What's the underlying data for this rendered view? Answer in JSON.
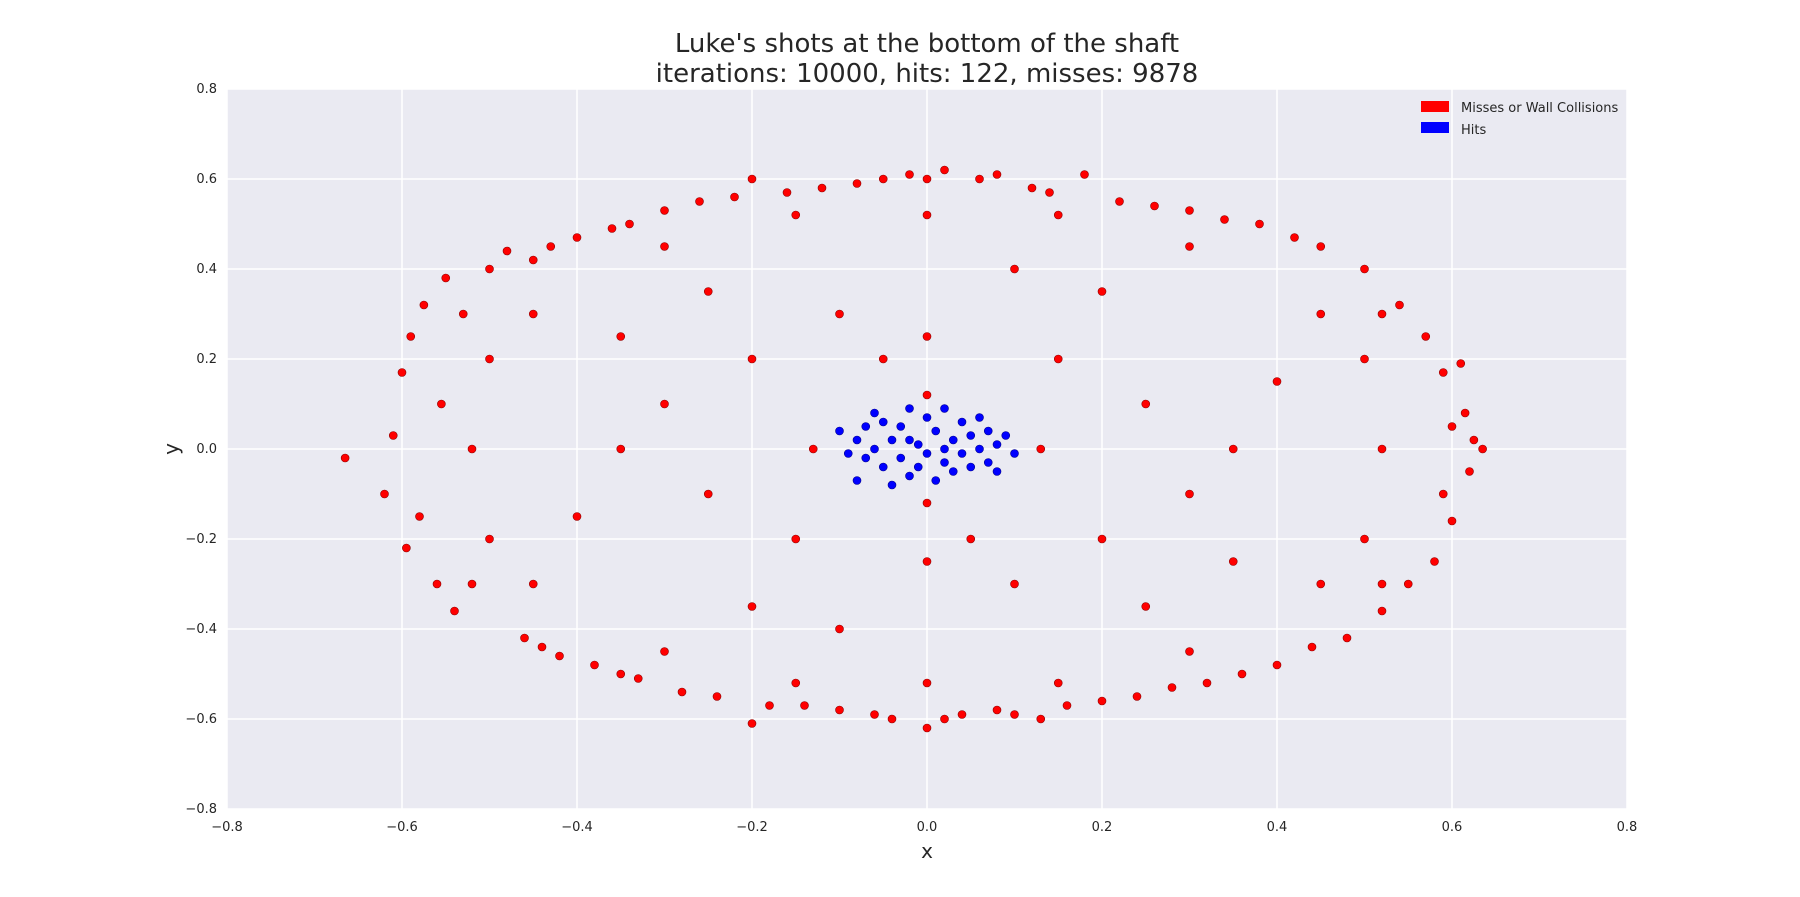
{
  "chart_data": {
    "type": "scatter",
    "title": "Luke's shots at the bottom of the shaft",
    "subtitle": "iterations: 10000, hits: 122, misses: 9878",
    "xlabel": "x",
    "ylabel": "y",
    "xlim": [
      -0.8,
      0.8
    ],
    "ylim": [
      -0.8,
      0.8
    ],
    "x_ticks": [
      -0.8,
      -0.6,
      -0.4,
      -0.2,
      0.0,
      0.2,
      0.4,
      0.6,
      0.8
    ],
    "y_ticks": [
      -0.8,
      -0.6,
      -0.4,
      -0.2,
      0.0,
      0.2,
      0.4,
      0.6,
      0.8
    ],
    "x_tick_labels": [
      "−0.8",
      "−0.6",
      "−0.4",
      "−0.2",
      "0.0",
      "0.2",
      "0.4",
      "0.6",
      "0.8"
    ],
    "y_tick_labels": [
      "−0.8",
      "−0.6",
      "−0.4",
      "−0.2",
      "0.0",
      "0.2",
      "0.4",
      "0.6",
      "0.8"
    ],
    "grid": true,
    "legend_position": "top-right",
    "background_color": "#eaeaf2",
    "grid_color": "#ffffff",
    "series": [
      {
        "name": "Misses or Wall Collisions",
        "color": "#ff0000",
        "points": [
          [
            -0.665,
            -0.02
          ],
          [
            -0.62,
            -0.1
          ],
          [
            -0.61,
            0.03
          ],
          [
            -0.6,
            0.17
          ],
          [
            -0.595,
            -0.22
          ],
          [
            -0.59,
            0.25
          ],
          [
            -0.58,
            -0.15
          ],
          [
            -0.575,
            0.32
          ],
          [
            -0.56,
            -0.3
          ],
          [
            -0.555,
            0.1
          ],
          [
            -0.55,
            0.38
          ],
          [
            -0.54,
            -0.36
          ],
          [
            -0.5,
            0.4
          ],
          [
            -0.48,
            0.44
          ],
          [
            -0.46,
            -0.42
          ],
          [
            -0.45,
            0.42
          ],
          [
            -0.44,
            -0.44
          ],
          [
            -0.43,
            0.45
          ],
          [
            -0.42,
            -0.46
          ],
          [
            -0.4,
            0.47
          ],
          [
            -0.38,
            -0.48
          ],
          [
            -0.36,
            0.49
          ],
          [
            -0.35,
            -0.5
          ],
          [
            -0.34,
            0.5
          ],
          [
            -0.33,
            -0.51
          ],
          [
            -0.3,
            0.53
          ],
          [
            -0.28,
            -0.54
          ],
          [
            -0.26,
            0.55
          ],
          [
            -0.24,
            -0.55
          ],
          [
            -0.22,
            0.56
          ],
          [
            -0.2,
            -0.61
          ],
          [
            -0.2,
            0.6
          ],
          [
            -0.18,
            -0.57
          ],
          [
            -0.16,
            0.57
          ],
          [
            -0.14,
            -0.57
          ],
          [
            -0.12,
            0.58
          ],
          [
            -0.1,
            -0.58
          ],
          [
            -0.08,
            0.59
          ],
          [
            -0.06,
            -0.59
          ],
          [
            -0.05,
            0.6
          ],
          [
            -0.04,
            -0.6
          ],
          [
            -0.02,
            0.61
          ],
          [
            0.0,
            -0.62
          ],
          [
            0.0,
            0.6
          ],
          [
            0.02,
            -0.6
          ],
          [
            0.02,
            0.62
          ],
          [
            0.04,
            -0.59
          ],
          [
            0.06,
            0.6
          ],
          [
            0.08,
            -0.58
          ],
          [
            0.08,
            0.61
          ],
          [
            0.1,
            -0.59
          ],
          [
            0.12,
            0.58
          ],
          [
            0.13,
            -0.6
          ],
          [
            0.14,
            0.57
          ],
          [
            0.16,
            -0.57
          ],
          [
            0.18,
            0.61
          ],
          [
            0.2,
            -0.56
          ],
          [
            0.22,
            0.55
          ],
          [
            0.24,
            -0.55
          ],
          [
            0.26,
            0.54
          ],
          [
            0.28,
            -0.53
          ],
          [
            0.3,
            0.53
          ],
          [
            0.32,
            -0.52
          ],
          [
            0.34,
            0.51
          ],
          [
            0.36,
            -0.5
          ],
          [
            0.38,
            0.5
          ],
          [
            0.4,
            -0.48
          ],
          [
            0.42,
            0.47
          ],
          [
            0.44,
            -0.44
          ],
          [
            0.45,
            0.45
          ],
          [
            0.48,
            -0.42
          ],
          [
            0.5,
            0.4
          ],
          [
            0.52,
            -0.36
          ],
          [
            0.54,
            0.32
          ],
          [
            0.55,
            -0.3
          ],
          [
            0.57,
            0.25
          ],
          [
            0.58,
            -0.25
          ],
          [
            0.59,
            0.17
          ],
          [
            0.6,
            -0.16
          ],
          [
            0.61,
            0.19
          ],
          [
            0.615,
            0.08
          ],
          [
            0.62,
            -0.05
          ],
          [
            0.625,
            0.02
          ],
          [
            0.635,
            0.0
          ],
          [
            0.6,
            0.05
          ],
          [
            0.59,
            -0.1
          ],
          [
            -0.5,
            0.2
          ],
          [
            -0.5,
            -0.2
          ],
          [
            -0.52,
            0.0
          ],
          [
            -0.53,
            0.3
          ],
          [
            -0.52,
            -0.3
          ],
          [
            -0.45,
            0.3
          ],
          [
            -0.45,
            -0.3
          ],
          [
            0.5,
            0.2
          ],
          [
            0.5,
            -0.2
          ],
          [
            0.52,
            0.0
          ],
          [
            0.52,
            0.3
          ],
          [
            0.52,
            -0.3
          ],
          [
            0.45,
            0.3
          ],
          [
            0.45,
            -0.3
          ],
          [
            -0.3,
            0.45
          ],
          [
            -0.3,
            -0.45
          ],
          [
            0.3,
            0.45
          ],
          [
            0.3,
            -0.45
          ],
          [
            -0.15,
            0.52
          ],
          [
            -0.15,
            -0.52
          ],
          [
            0.15,
            0.52
          ],
          [
            0.15,
            -0.52
          ],
          [
            0.0,
            0.52
          ],
          [
            0.0,
            -0.52
          ],
          [
            -0.35,
            0.0
          ],
          [
            -0.3,
            0.1
          ],
          [
            -0.25,
            -0.1
          ],
          [
            -0.2,
            0.2
          ],
          [
            -0.15,
            -0.2
          ],
          [
            -0.1,
            0.3
          ],
          [
            0.1,
            -0.3
          ],
          [
            0.15,
            0.2
          ],
          [
            0.2,
            -0.2
          ],
          [
            0.25,
            0.1
          ],
          [
            0.3,
            -0.1
          ],
          [
            0.35,
            0.0
          ],
          [
            -0.05,
            0.2
          ],
          [
            0.05,
            -0.2
          ],
          [
            0.0,
            0.25
          ],
          [
            0.0,
            -0.25
          ],
          [
            -0.2,
            -0.35
          ],
          [
            0.2,
            0.35
          ],
          [
            -0.35,
            0.25
          ],
          [
            0.35,
            -0.25
          ],
          [
            -0.4,
            -0.15
          ],
          [
            0.4,
            0.15
          ],
          [
            -0.1,
            -0.4
          ],
          [
            0.1,
            0.4
          ],
          [
            -0.25,
            0.35
          ],
          [
            0.25,
            -0.35
          ],
          [
            0.0,
            0.12
          ],
          [
            0.0,
            -0.12
          ],
          [
            -0.13,
            0.0
          ],
          [
            0.13,
            0.0
          ]
        ]
      },
      {
        "name": "Hits",
        "color": "#0000ff",
        "points": [
          [
            -0.1,
            0.04
          ],
          [
            -0.09,
            -0.01
          ],
          [
            -0.08,
            0.02
          ],
          [
            -0.08,
            -0.07
          ],
          [
            -0.07,
            0.05
          ],
          [
            -0.07,
            -0.02
          ],
          [
            -0.06,
            0.0
          ],
          [
            -0.06,
            0.08
          ],
          [
            -0.05,
            -0.04
          ],
          [
            -0.05,
            0.06
          ],
          [
            -0.04,
            -0.08
          ],
          [
            -0.04,
            0.02
          ],
          [
            -0.03,
            0.05
          ],
          [
            -0.03,
            -0.02
          ],
          [
            -0.02,
            -0.06
          ],
          [
            -0.02,
            0.09
          ],
          [
            -0.01,
            0.01
          ],
          [
            -0.01,
            -0.04
          ],
          [
            0.0,
            0.07
          ],
          [
            0.0,
            -0.01
          ],
          [
            0.01,
            0.04
          ],
          [
            0.01,
            -0.07
          ],
          [
            0.02,
            0.09
          ],
          [
            0.02,
            -0.03
          ],
          [
            0.03,
            0.02
          ],
          [
            0.03,
            -0.05
          ],
          [
            0.04,
            0.06
          ],
          [
            0.04,
            -0.01
          ],
          [
            0.05,
            0.03
          ],
          [
            0.05,
            -0.04
          ],
          [
            0.06,
            0.07
          ],
          [
            0.06,
            0.0
          ],
          [
            0.07,
            -0.03
          ],
          [
            0.07,
            0.04
          ],
          [
            0.08,
            0.01
          ],
          [
            0.08,
            -0.05
          ],
          [
            0.09,
            0.03
          ],
          [
            0.1,
            -0.01
          ],
          [
            -0.02,
            0.02
          ],
          [
            0.02,
            0.0
          ]
        ]
      }
    ]
  }
}
